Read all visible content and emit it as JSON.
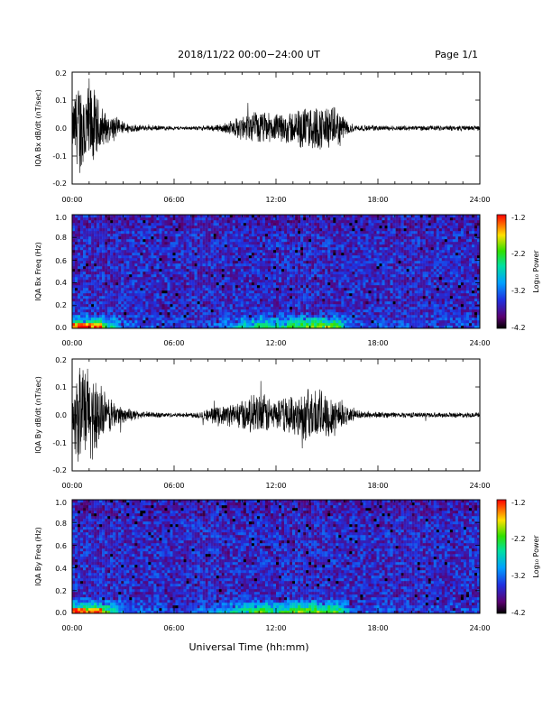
{
  "header": {
    "title": "2018/11/22  00:00−24:00 UT",
    "page": "Page 1/1"
  },
  "footer": {
    "xlabel": "Universal Time (hh:mm)"
  },
  "time_ticks": [
    "00:00",
    "06:00",
    "12:00",
    "18:00",
    "24:00"
  ],
  "colorbar": {
    "label": "Log₁₀ Power",
    "ticks": [
      "-1.2",
      "-2.2",
      "-3.2",
      "-4.2"
    ],
    "range": [
      -4.2,
      -1.2
    ]
  },
  "chart_data": [
    {
      "type": "line",
      "ylabel": "IQA Bx dB/dt (nT/sec)",
      "xlim": [
        0,
        24
      ],
      "ylim": [
        -0.2,
        0.2
      ],
      "ytick_labels": [
        "0.2",
        "0.1",
        "0.0",
        "-0.1",
        "-0.2"
      ],
      "series": [
        {
          "color": "#000000",
          "envelope": {
            "t": [
              0,
              0.3,
              0.6,
              1.0,
              1.5,
              2.0,
              2.5,
              3.0,
              4.0,
              5.0,
              6.0,
              7.0,
              8.0,
              9.0,
              10.0,
              11.0,
              12.0,
              13.0,
              14.0,
              15.0,
              15.8,
              16.3,
              17.0,
              18.0,
              20.0,
              22.0,
              24.0
            ],
            "amp": [
              0.08,
              0.2,
              0.2,
              0.2,
              0.12,
              0.06,
              0.05,
              0.025,
              0.012,
              0.01,
              0.008,
              0.007,
              0.01,
              0.02,
              0.05,
              0.07,
              0.055,
              0.07,
              0.09,
              0.09,
              0.07,
              0.02,
              0.012,
              0.01,
              0.01,
              0.01,
              0.01
            ]
          }
        }
      ]
    },
    {
      "type": "heatmap",
      "ylabel": "IQA Bx Freq (Hz)",
      "xlim": [
        0,
        24
      ],
      "ylim": [
        0.0,
        1.0
      ],
      "ytick_labels": [
        "1.0",
        "0.8",
        "0.6",
        "0.4",
        "0.2",
        "0.0"
      ],
      "z_range": [
        -4.2,
        -1.2
      ]
    },
    {
      "type": "line",
      "ylabel": "IQA By dB/dt (nT/sec)",
      "xlim": [
        0,
        24
      ],
      "ylim": [
        -0.2,
        0.2
      ],
      "ytick_labels": [
        "0.2",
        "0.1",
        "0.0",
        "-0.1",
        "-0.2"
      ],
      "series": [
        {
          "color": "#000000",
          "envelope": {
            "t": [
              0,
              0.3,
              0.6,
              1.0,
              1.5,
              2.0,
              2.5,
              3.0,
              4.0,
              5.0,
              6.0,
              7.0,
              8.0,
              9.0,
              10.0,
              11.0,
              12.0,
              13.0,
              14.0,
              15.0,
              15.8,
              16.3,
              17.0,
              18.0,
              20.0,
              22.0,
              24.0
            ],
            "amp": [
              0.08,
              0.2,
              0.2,
              0.2,
              0.15,
              0.08,
              0.06,
              0.03,
              0.015,
              0.012,
              0.008,
              0.01,
              0.025,
              0.04,
              0.06,
              0.09,
              0.06,
              0.08,
              0.11,
              0.1,
              0.07,
              0.025,
              0.015,
              0.012,
              0.01,
              0.01,
              0.01
            ]
          }
        }
      ]
    },
    {
      "type": "heatmap",
      "ylabel": "IQA By Freq (Hz)",
      "xlim": [
        0,
        24
      ],
      "ylim": [
        0.0,
        1.0
      ],
      "ytick_labels": [
        "1.0",
        "0.8",
        "0.6",
        "0.4",
        "0.2",
        "0.0"
      ],
      "z_range": [
        -4.2,
        -1.2
      ]
    }
  ]
}
